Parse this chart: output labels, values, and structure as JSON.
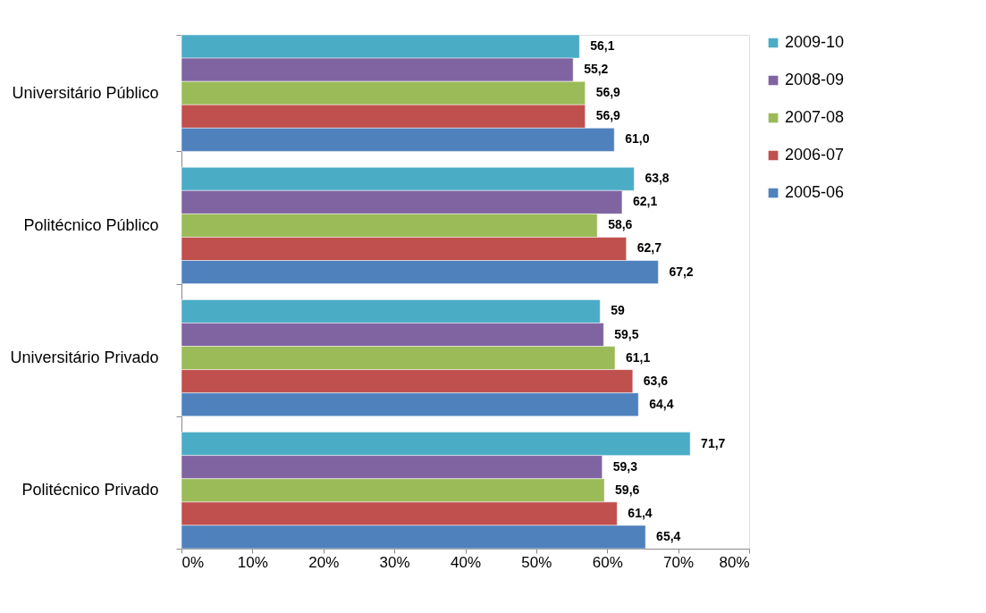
{
  "chart_data": {
    "type": "bar",
    "orientation": "horizontal",
    "categories": [
      "Universitário Público",
      "Politécnico Público",
      "Universitário Privado",
      "Politécnico Privado"
    ],
    "series": [
      {
        "name": "2009-10",
        "color": "#4bacc6",
        "values": [
          56.1,
          63.8,
          59,
          71.7
        ],
        "value_labels": [
          "56,1",
          "63,8",
          "59",
          "71,7"
        ]
      },
      {
        "name": "2008-09",
        "color": "#8064a2",
        "values": [
          55.2,
          62.1,
          59.5,
          59.3
        ],
        "value_labels": [
          "55,2",
          "62,1",
          "59,5",
          "59,3"
        ]
      },
      {
        "name": "2007-08",
        "color": "#9bbb59",
        "values": [
          56.9,
          58.6,
          61.1,
          59.6
        ],
        "value_labels": [
          "56,9",
          "58,6",
          "61,1",
          "59,6"
        ]
      },
      {
        "name": "2006-07",
        "color": "#c0504d",
        "values": [
          56.9,
          62.7,
          63.6,
          61.4
        ],
        "value_labels": [
          "56,9",
          "62,7",
          "63,6",
          "61,4"
        ]
      },
      {
        "name": "2005-06",
        "color": "#4f81bd",
        "values": [
          61.0,
          67.2,
          64.4,
          65.4
        ],
        "value_labels": [
          "61,0",
          "67,2",
          "64,4",
          "65,4"
        ]
      }
    ],
    "xlim": [
      0,
      80
    ],
    "xticks": [
      {
        "value": 0,
        "label": "0%"
      },
      {
        "value": 10,
        "label": "10%"
      },
      {
        "value": 20,
        "label": "20%"
      },
      {
        "value": 30,
        "label": "30%"
      },
      {
        "value": 40,
        "label": "40%"
      },
      {
        "value": 50,
        "label": "50%"
      },
      {
        "value": 60,
        "label": "60%"
      },
      {
        "value": 70,
        "label": "70%"
      },
      {
        "value": 80,
        "label": "80%"
      }
    ],
    "grid": false,
    "legend": "right"
  }
}
